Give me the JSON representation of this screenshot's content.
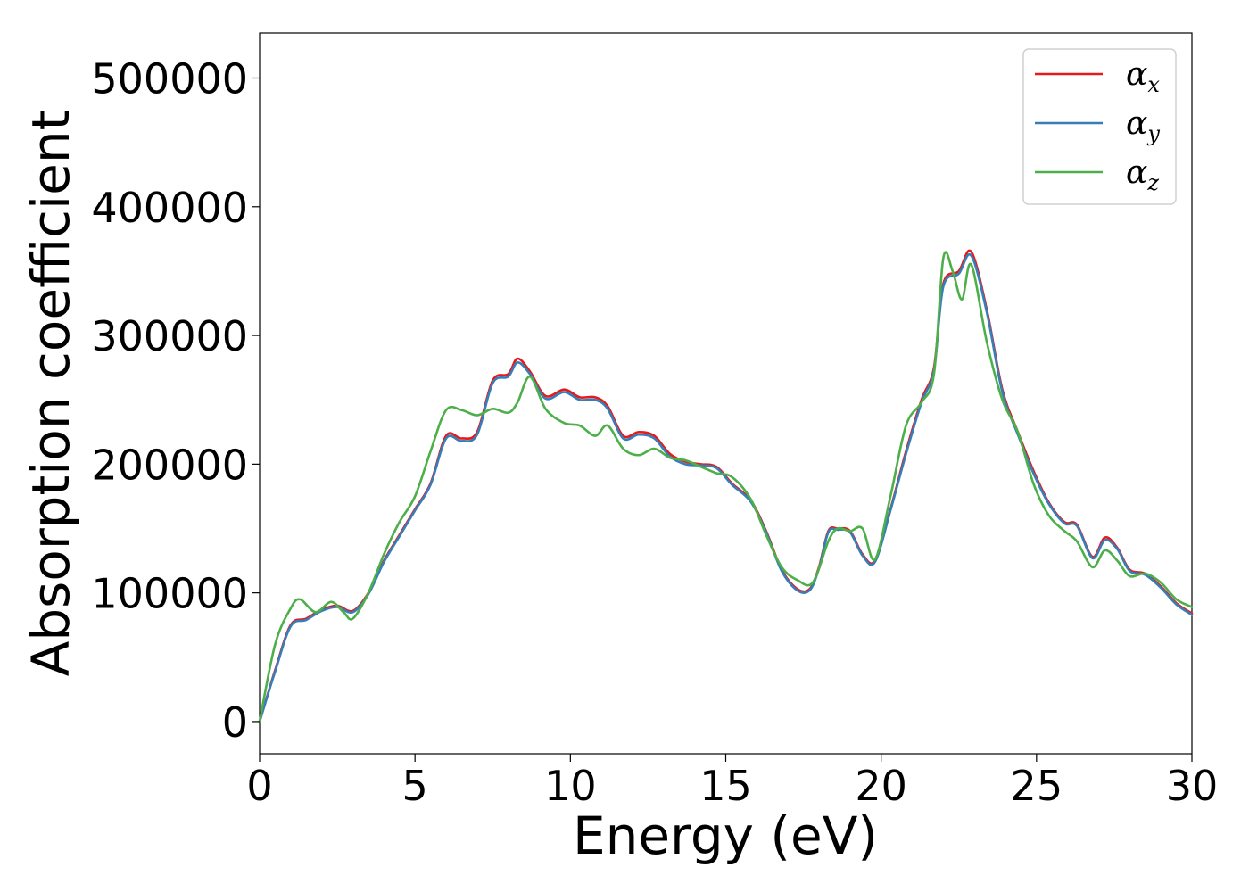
{
  "chart_data": {
    "type": "line",
    "title": "",
    "xlabel": "Energy (eV)",
    "ylabel": "Absorption coefficient",
    "xlim": [
      0,
      30
    ],
    "ylim": [
      -25000,
      535000
    ],
    "xticks": [
      0,
      5,
      10,
      15,
      20,
      25,
      30
    ],
    "yticks": [
      0,
      100000,
      200000,
      300000,
      400000,
      500000
    ],
    "grid": false,
    "legend_position": "top-right",
    "series": [
      {
        "name": "α",
        "subscript": "x",
        "color": "#e41a1c",
        "x": [
          0,
          0.5,
          1.0,
          1.5,
          2.0,
          2.5,
          3.0,
          3.5,
          4.0,
          4.5,
          5.0,
          5.5,
          6.0,
          6.5,
          7.0,
          7.5,
          8.0,
          8.3,
          8.7,
          9.2,
          9.8,
          10.3,
          10.8,
          11.2,
          11.7,
          12.2,
          12.7,
          13.2,
          13.7,
          14.2,
          14.7,
          15.2,
          15.8,
          16.3,
          16.8,
          17.3,
          17.7,
          18.0,
          18.3,
          18.6,
          19.0,
          19.4,
          19.8,
          20.3,
          20.8,
          21.3,
          21.7,
          22.0,
          22.5,
          22.9,
          23.4,
          23.9,
          24.4,
          24.9,
          25.4,
          25.9,
          26.3,
          26.8,
          27.2,
          27.6,
          28.0,
          28.5,
          29.0,
          29.5,
          30.0
        ],
        "y": [
          0,
          40000,
          75000,
          80000,
          87000,
          90000,
          86000,
          100000,
          125000,
          145000,
          165000,
          185000,
          222000,
          220000,
          225000,
          265000,
          270000,
          282000,
          272000,
          253000,
          258000,
          252000,
          252000,
          245000,
          222000,
          225000,
          222000,
          208000,
          202000,
          200000,
          198000,
          185000,
          172000,
          148000,
          118000,
          103000,
          103000,
          120000,
          148000,
          150000,
          148000,
          130000,
          125000,
          165000,
          210000,
          250000,
          275000,
          340000,
          350000,
          365000,
          320000,
          258000,
          225000,
          195000,
          170000,
          155000,
          153000,
          128000,
          143000,
          135000,
          118000,
          115000,
          105000,
          92000,
          84000
        ]
      },
      {
        "name": "α",
        "subscript": "y",
        "color": "#377eb8",
        "x": [
          0,
          0.5,
          1.0,
          1.5,
          2.0,
          2.5,
          3.0,
          3.5,
          4.0,
          4.5,
          5.0,
          5.5,
          6.0,
          6.5,
          7.0,
          7.5,
          8.0,
          8.3,
          8.7,
          9.2,
          9.8,
          10.3,
          10.8,
          11.2,
          11.7,
          12.2,
          12.7,
          13.2,
          13.7,
          14.2,
          14.7,
          15.2,
          15.8,
          16.3,
          16.8,
          17.3,
          17.7,
          18.0,
          18.3,
          18.6,
          19.0,
          19.4,
          19.8,
          20.3,
          20.8,
          21.3,
          21.7,
          22.0,
          22.5,
          22.9,
          23.4,
          23.9,
          24.4,
          24.9,
          25.4,
          25.9,
          26.3,
          26.8,
          27.2,
          27.6,
          28.0,
          28.5,
          29.0,
          29.5,
          30.0
        ],
        "y": [
          0,
          39000,
          74000,
          79000,
          86000,
          89000,
          85000,
          99000,
          124000,
          144000,
          164000,
          184000,
          220000,
          218000,
          223000,
          263000,
          268000,
          279000,
          270000,
          251000,
          256000,
          250000,
          250000,
          243000,
          220000,
          223000,
          220000,
          206000,
          200000,
          199000,
          197000,
          184000,
          171000,
          147000,
          117000,
          102000,
          102000,
          119000,
          147000,
          149000,
          147000,
          129000,
          124000,
          164000,
          208000,
          248000,
          273000,
          338000,
          348000,
          362000,
          318000,
          256000,
          223000,
          193000,
          169000,
          154000,
          152000,
          127000,
          141000,
          134000,
          117000,
          114000,
          104000,
          91000,
          83000
        ]
      },
      {
        "name": "α",
        "subscript": "z",
        "color": "#4daf4a",
        "x": [
          0,
          0.5,
          1.0,
          1.3,
          1.8,
          2.3,
          2.7,
          3.0,
          3.5,
          4.0,
          4.5,
          5.0,
          5.5,
          6.0,
          6.5,
          7.0,
          7.5,
          8.0,
          8.3,
          8.7,
          9.2,
          9.8,
          10.3,
          10.8,
          11.2,
          11.7,
          12.2,
          12.7,
          13.2,
          13.7,
          14.2,
          14.7,
          15.2,
          15.8,
          16.3,
          16.8,
          17.3,
          17.8,
          18.3,
          18.6,
          19.0,
          19.4,
          19.8,
          20.3,
          20.8,
          21.3,
          21.7,
          22.0,
          22.3,
          22.6,
          22.9,
          23.4,
          23.9,
          24.4,
          24.9,
          25.4,
          25.9,
          26.3,
          26.8,
          27.2,
          27.6,
          28.0,
          28.5,
          29.0,
          29.5,
          30.0
        ],
        "y": [
          0,
          60000,
          88000,
          95000,
          85000,
          93000,
          85000,
          80000,
          100000,
          130000,
          155000,
          175000,
          210000,
          242000,
          242000,
          238000,
          243000,
          240000,
          248000,
          268000,
          243000,
          232000,
          230000,
          222000,
          230000,
          212000,
          207000,
          212000,
          205000,
          203000,
          198000,
          193000,
          190000,
          173000,
          145000,
          120000,
          110000,
          108000,
          140000,
          150000,
          148000,
          150000,
          126000,
          175000,
          230000,
          248000,
          270000,
          360000,
          350000,
          328000,
          355000,
          295000,
          250000,
          225000,
          185000,
          160000,
          148000,
          140000,
          120000,
          133000,
          125000,
          113000,
          115000,
          108000,
          95000,
          89000
        ]
      }
    ]
  }
}
